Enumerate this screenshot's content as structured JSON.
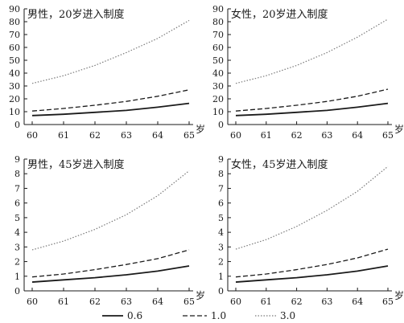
{
  "chart_data": [
    {
      "type": "line",
      "title": "男性，20岁进入制度",
      "xlabel": "岁",
      "ylabel": "",
      "x": [
        60,
        61,
        62,
        63,
        64,
        65
      ],
      "ylim": [
        0,
        90
      ],
      "yticks": [
        0,
        10,
        20,
        30,
        40,
        50,
        60,
        70,
        80,
        90
      ],
      "grid": false,
      "series": [
        {
          "name": "0.6",
          "values": [
            7,
            8,
            9.5,
            11,
            13.5,
            16.5
          ]
        },
        {
          "name": "1.0",
          "values": [
            10.5,
            12.5,
            15,
            18,
            22,
            27
          ]
        },
        {
          "name": "3.0",
          "values": [
            32,
            38,
            46,
            56,
            67,
            81
          ]
        }
      ]
    },
    {
      "type": "line",
      "title": "女性，20岁进入制度",
      "xlabel": "岁",
      "ylabel": "",
      "x": [
        60,
        61,
        62,
        63,
        64,
        65
      ],
      "ylim": [
        0,
        90
      ],
      "yticks": [
        0,
        10,
        20,
        30,
        40,
        50,
        60,
        70,
        80,
        90
      ],
      "grid": false,
      "series": [
        {
          "name": "0.6",
          "values": [
            7,
            8,
            9.5,
            11,
            13.5,
            16.5
          ]
        },
        {
          "name": "1.0",
          "values": [
            10.5,
            12.5,
            15,
            18,
            22,
            27.5
          ]
        },
        {
          "name": "3.0",
          "values": [
            32,
            38,
            46,
            56,
            68,
            82
          ]
        }
      ]
    },
    {
      "type": "line",
      "title": "男性，45岁进入制度",
      "xlabel": "岁",
      "ylabel": "",
      "x": [
        60,
        61,
        62,
        63,
        64,
        65
      ],
      "ylim": [
        0,
        9
      ],
      "yticks": [
        0,
        1,
        2,
        3,
        4,
        5,
        6,
        7,
        8,
        9
      ],
      "grid": false,
      "series": [
        {
          "name": "0.6",
          "values": [
            0.6,
            0.75,
            0.9,
            1.1,
            1.35,
            1.7
          ]
        },
        {
          "name": "1.0",
          "values": [
            0.95,
            1.15,
            1.45,
            1.8,
            2.2,
            2.8
          ]
        },
        {
          "name": "3.0",
          "values": [
            2.8,
            3.4,
            4.2,
            5.2,
            6.5,
            8.2
          ]
        }
      ]
    },
    {
      "type": "line",
      "title": "女性，45岁进入制度",
      "xlabel": "岁",
      "ylabel": "",
      "x": [
        60,
        61,
        62,
        63,
        64,
        65
      ],
      "ylim": [
        0,
        9
      ],
      "yticks": [
        0,
        1,
        2,
        3,
        4,
        5,
        6,
        7,
        8,
        9
      ],
      "grid": false,
      "series": [
        {
          "name": "0.6",
          "values": [
            0.6,
            0.75,
            0.9,
            1.1,
            1.35,
            1.7
          ]
        },
        {
          "name": "1.0",
          "values": [
            0.95,
            1.15,
            1.45,
            1.8,
            2.25,
            2.85
          ]
        },
        {
          "name": "3.0",
          "values": [
            2.85,
            3.5,
            4.4,
            5.5,
            6.8,
            8.5
          ]
        }
      ]
    }
  ],
  "legend": {
    "position": "bottom",
    "items": [
      {
        "label": "0.6",
        "style": "solid"
      },
      {
        "label": "1.0",
        "style": "dashed"
      },
      {
        "label": "3.0",
        "style": "dotted"
      }
    ]
  },
  "colors": {
    "ink": "#1a1a1a",
    "dotted": "#7a7a7a"
  }
}
